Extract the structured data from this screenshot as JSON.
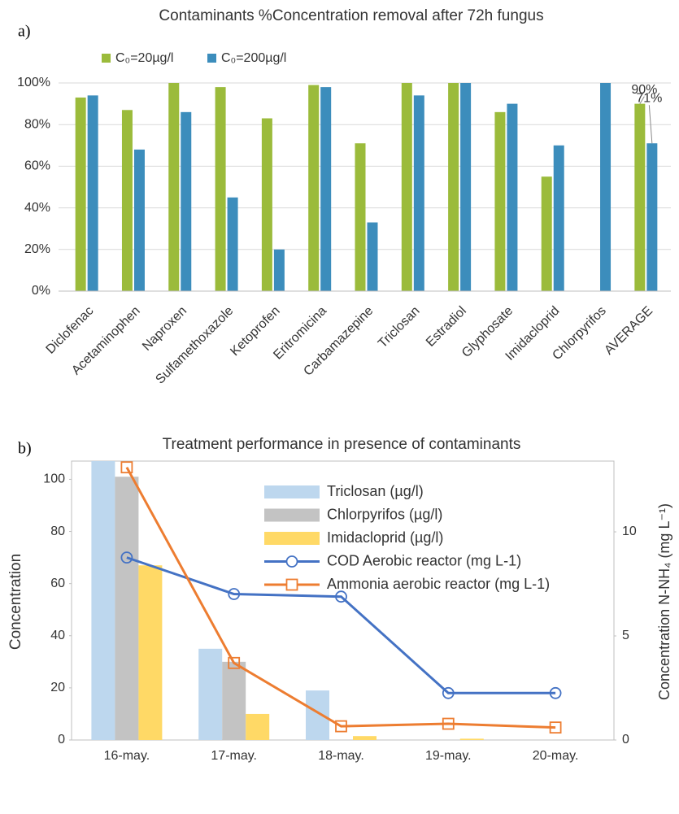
{
  "chart_data": [
    {
      "type": "bar",
      "panel_label": "a)",
      "title": "Contaminants %Concentration removal after 72h fungus",
      "categories": [
        "Diclofenac",
        "Acetaminophen",
        "Naproxen",
        "Sulfamethoxazole",
        "Ketoprofen",
        "Eritromicina",
        "Carbamazepine",
        "Triclosan",
        "Estradiol",
        "Glyphosate",
        "Imidacloprid",
        "Chlorpyrifos",
        "AVERAGE"
      ],
      "series": [
        {
          "name": "C₀=20µg/l",
          "color": "#9bbb3b",
          "values": [
            93,
            87,
            100,
            98,
            83,
            99,
            71,
            100,
            100,
            86,
            55,
            null,
            90
          ],
          "value_labels": [
            null,
            null,
            null,
            null,
            null,
            null,
            null,
            null,
            null,
            null,
            null,
            null,
            "90%"
          ]
        },
        {
          "name": "C₀=200µg/l",
          "color": "#3c8dbc",
          "values": [
            94,
            68,
            86,
            45,
            20,
            98,
            33,
            94,
            100,
            90,
            70,
            100,
            71
          ],
          "value_labels": [
            null,
            null,
            null,
            null,
            null,
            null,
            null,
            null,
            null,
            null,
            null,
            null,
            "71%"
          ]
        }
      ],
      "ylim": [
        0,
        100
      ],
      "yticks": [
        {
          "value": 0,
          "label": "0%"
        },
        {
          "value": 20,
          "label": "20%"
        },
        {
          "value": 40,
          "label": "40%"
        },
        {
          "value": 60,
          "label": "60%"
        },
        {
          "value": 80,
          "label": "80%"
        },
        {
          "value": 100,
          "label": "100%"
        }
      ],
      "grid": true
    },
    {
      "type": "combo",
      "panel_label": "b)",
      "title": "Treatment performance in presence of contaminants",
      "y_label": "Concentration",
      "y2_label": "Concentration N-NH₄  (mg L⁻¹)",
      "categories": [
        "16-may.",
        "17-may.",
        "18-may.",
        "19-may.",
        "20-may."
      ],
      "series": [
        {
          "name": "Triclosan (µg/l)",
          "type": "bar",
          "color": "#bdd7ee",
          "values": [
            107,
            35,
            19,
            0,
            0
          ]
        },
        {
          "name": "Chlorpyrifos (µg/l)",
          "type": "bar",
          "color": "#c3c3c3",
          "values": [
            101,
            30,
            0,
            0,
            0
          ]
        },
        {
          "name": "Imidacloprid (µg/l)",
          "type": "bar",
          "color": "#ffd966",
          "values": [
            67,
            10,
            1.5,
            0.5,
            0
          ]
        },
        {
          "name": "COD Aerobic reactor (mg L-1)",
          "type": "line",
          "marker": "circle",
          "color": "#4472c4",
          "values": [
            70,
            56,
            55,
            18,
            18
          ]
        },
        {
          "name": "Ammonia aerobic reactor (mg L-1)",
          "type": "line",
          "marker": "square",
          "axis": "y2",
          "color": "#ed7d31",
          "values": [
            13.1,
            3.7,
            0.66,
            0.78,
            0.6
          ]
        }
      ],
      "ylim": [
        0,
        107
      ],
      "yticks": [
        0,
        20,
        40,
        60,
        80,
        100
      ],
      "y2lim": [
        0,
        13.4
      ],
      "y2ticks": [
        0,
        5,
        10
      ],
      "grid": false
    }
  ]
}
